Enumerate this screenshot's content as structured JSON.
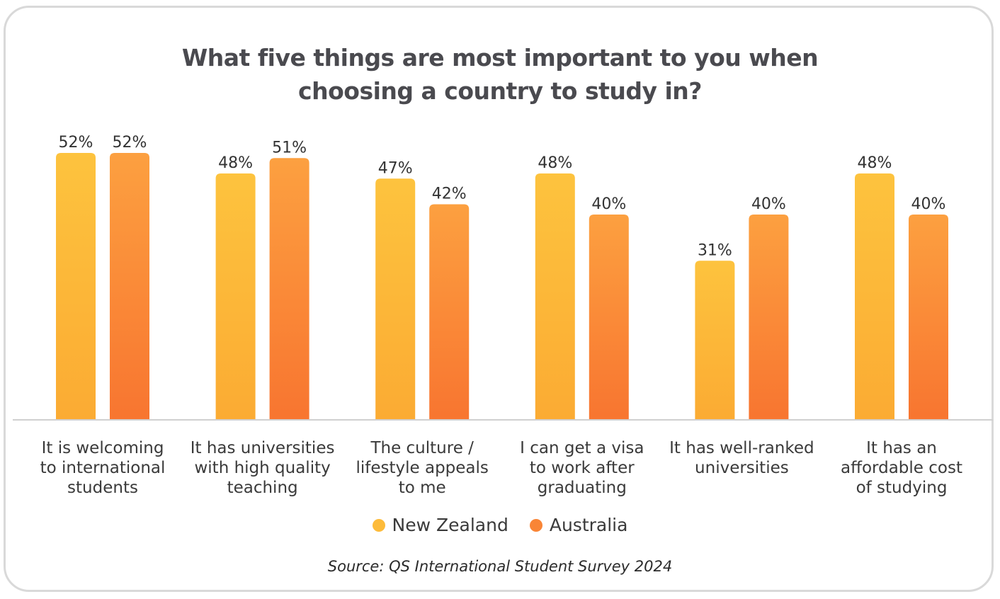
{
  "chart_data": {
    "type": "bar",
    "title_lines": [
      "What five things are most important to you when",
      "choosing a country to study in?"
    ],
    "categories": [
      [
        "It is welcoming",
        "to international",
        "students"
      ],
      [
        "It has universities",
        "with high quality",
        "teaching"
      ],
      [
        "The culture /",
        "lifestyle appeals",
        "to me"
      ],
      [
        "I can get a visa",
        "to work after",
        "graduating"
      ],
      [
        "It has well-ranked",
        "universities"
      ],
      [
        "It has an",
        "affordable cost",
        "of studying"
      ]
    ],
    "series": [
      {
        "name": "New Zealand",
        "values": [
          52,
          48,
          47,
          48,
          31,
          48
        ],
        "labels": [
          "52%",
          "48%",
          "47%",
          "48%",
          "31%",
          "48%"
        ],
        "color_top": "#fdc33e",
        "color_bottom": "#fbab33"
      },
      {
        "name": "Australia",
        "values": [
          52,
          51,
          42,
          40,
          40,
          40
        ],
        "labels": [
          "52%",
          "51%",
          "42%",
          "40%",
          "40%",
          "40%"
        ],
        "color_top": "#fca040",
        "color_bottom": "#f87530"
      }
    ],
    "ylim": [
      0,
      52
    ],
    "grid": false,
    "legend_position": "bottom"
  },
  "legend": [
    {
      "label": "New Zealand",
      "color": "#fdbb3a"
    },
    {
      "label": "Australia",
      "color": "#f98536"
    }
  ],
  "source": "Source: QS International Student Survey 2024"
}
